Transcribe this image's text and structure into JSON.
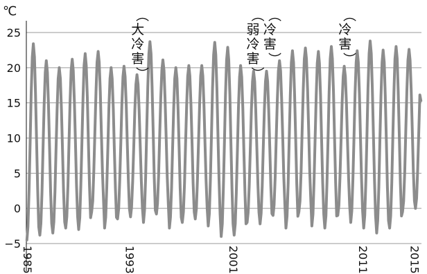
{
  "chart_data": {
    "type": "line",
    "title": "",
    "ylabel": "",
    "xlabel": "",
    "unit_label": "℃",
    "ylim": [
      -5,
      25
    ],
    "y_ticks": [
      -5,
      0,
      5,
      10,
      15,
      20,
      25
    ],
    "xlim": [
      1985,
      2015.5
    ],
    "x_tick_labels": [
      "1985",
      "1993",
      "2001",
      "2011",
      "2015"
    ],
    "x_tick_positions": [
      1985,
      1993,
      2001,
      2011,
      2015
    ],
    "grid": "horizontal",
    "series_color": "#8c8c8c",
    "series": [
      {
        "annual_minima": [
          -4.5,
          -3.8,
          -3.5,
          -2.8,
          -3.0,
          -0.5,
          -2.8,
          -1.5,
          -1.2,
          -2.0,
          -0.8,
          -2.8,
          -2.0,
          -1.5,
          -2.5,
          -4.0,
          -3.8,
          -2.0,
          -2.2,
          -1.0,
          -2.8,
          -0.5,
          -2.5,
          -2.8,
          -1.0,
          -2.0,
          -2.8,
          -3.5,
          -2.8,
          -0.5,
          0.0
        ],
        "annual_maxima": [
          23.4,
          21.0,
          20.0,
          21.2,
          22.0,
          22.3,
          20.0,
          20.2,
          19.0,
          23.7,
          21.1,
          20.0,
          20.3,
          20.3,
          23.6,
          22.9,
          20.3,
          19.5,
          19.5,
          21.0,
          22.4,
          22.8,
          22.3,
          23.0,
          20.2,
          22.4,
          23.8,
          22.5,
          23.0,
          22.6,
          21.5
        ],
        "final_value": 15.3
      }
    ],
    "annotations": [
      {
        "label": "（大冷害）",
        "year": 1993.6
      },
      {
        "label": "（弱冷害）",
        "year": 2002.5
      },
      {
        "label": "（冷害）",
        "year": 2003.8
      },
      {
        "label": "（冷害）",
        "year": 2009.6
      }
    ]
  }
}
